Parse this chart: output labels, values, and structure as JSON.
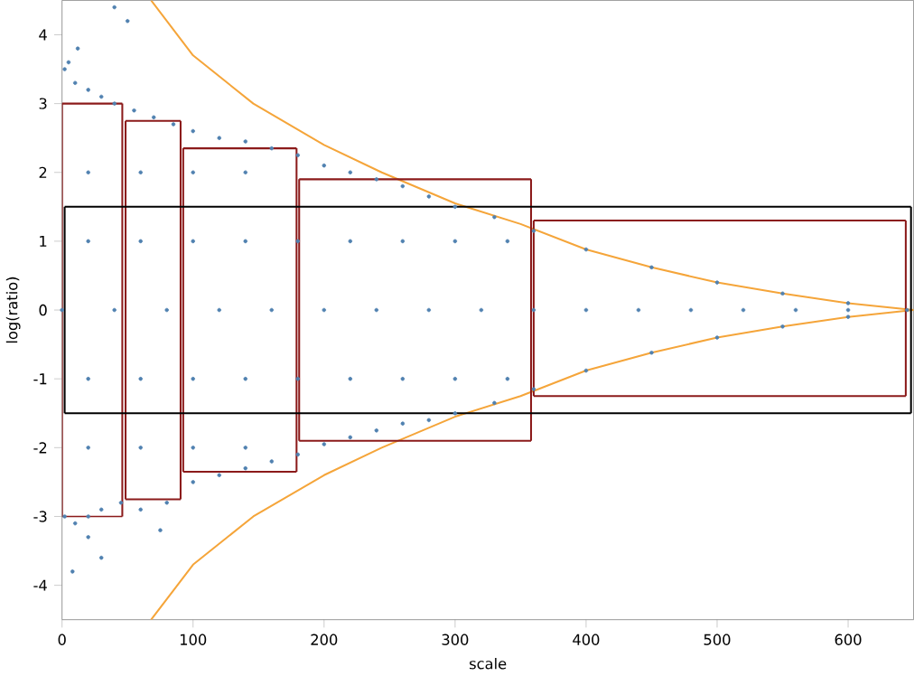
{
  "chart_data": {
    "type": "scatter",
    "xlabel": "scale",
    "ylabel": "log(ratio)",
    "xlim": [
      0,
      650
    ],
    "ylim": [
      -4.5,
      4.5
    ],
    "xticks": [
      0,
      100,
      200,
      300,
      400,
      500,
      600
    ],
    "yticks": [
      -4,
      -3,
      -2,
      -1,
      0,
      1,
      2,
      3,
      4
    ],
    "grid": false,
    "series": [
      {
        "marker": "circle",
        "color": "#5081b0",
        "x": [
          2,
          10,
          20,
          30,
          40,
          55,
          70,
          85,
          100,
          120,
          140,
          160,
          180,
          200,
          220,
          240,
          260,
          280,
          300,
          330,
          360,
          400,
          450,
          500,
          550,
          600,
          645,
          2,
          10,
          20,
          30,
          45,
          60,
          80,
          100,
          120,
          140,
          160,
          180,
          200,
          220,
          240,
          260,
          280,
          300,
          330,
          360,
          400,
          450,
          500,
          550,
          600,
          5,
          12,
          40,
          50,
          8,
          30,
          20,
          75,
          0,
          40,
          80,
          120,
          160,
          200,
          240,
          280,
          320,
          360,
          400,
          440,
          480,
          520,
          560,
          600,
          20,
          60,
          100,
          140,
          180,
          220,
          260,
          300,
          340,
          20,
          60,
          100,
          140,
          180,
          220,
          260,
          300,
          340,
          20,
          60,
          100,
          140,
          20,
          60,
          100,
          140
        ],
        "values": [
          3.5,
          3.3,
          3.2,
          3.1,
          3.0,
          2.9,
          2.8,
          2.7,
          2.6,
          2.5,
          2.45,
          2.35,
          2.25,
          2.1,
          2.0,
          1.9,
          1.8,
          1.65,
          1.5,
          1.35,
          1.15,
          0.88,
          0.62,
          0.4,
          0.24,
          0.1,
          0.0,
          -3.0,
          -3.1,
          -3.0,
          -2.9,
          -2.8,
          -2.9,
          -2.8,
          -2.5,
          -2.4,
          -2.3,
          -2.2,
          -2.1,
          -1.95,
          -1.85,
          -1.75,
          -1.65,
          -1.6,
          -1.5,
          -1.35,
          -1.15,
          -0.88,
          -0.62,
          -0.4,
          -0.24,
          -0.1,
          3.6,
          3.8,
          4.4,
          4.2,
          -3.8,
          -3.6,
          -3.3,
          -3.2,
          0,
          0,
          0,
          0,
          0,
          0,
          0,
          0,
          0,
          0,
          0,
          0,
          0,
          0,
          0,
          0,
          1,
          1,
          1,
          1,
          1,
          1,
          1,
          1,
          1,
          -1,
          -1,
          -1,
          -1,
          -1,
          -1,
          -1,
          -1,
          -1,
          2,
          2,
          2,
          2,
          -2,
          -2,
          -2,
          -2
        ]
      },
      {
        "type": "line",
        "color": "#f5a53a",
        "x": [
          68,
          100,
          146,
          200,
          244,
          300,
          350,
          400,
          450,
          500,
          550,
          600,
          650
        ],
        "values": [
          4.5,
          3.7,
          3.0,
          2.4,
          2.0,
          1.55,
          1.25,
          0.88,
          0.62,
          0.4,
          0.24,
          0.1,
          0
        ]
      },
      {
        "type": "line",
        "color": "#f5a53a",
        "x": [
          68,
          100,
          146,
          200,
          244,
          300,
          350,
          400,
          450,
          500,
          550,
          600,
          650
        ],
        "values": [
          -4.5,
          -3.7,
          -3.0,
          -2.4,
          -2.0,
          -1.55,
          -1.25,
          -0.88,
          -0.62,
          -0.4,
          -0.24,
          -0.1,
          0
        ]
      },
      {
        "type": "line",
        "color": "#8b1a1a",
        "x": [
          0,
          46
        ],
        "values": [
          3.0,
          3.0
        ]
      },
      {
        "type": "line",
        "color": "#8b1a1a",
        "x": [
          0,
          46
        ],
        "values": [
          -3.0,
          -3.0
        ]
      },
      {
        "type": "line",
        "color": "#8b1a1a",
        "x": [
          0,
          0
        ],
        "values": [
          -3.0,
          3.0
        ]
      },
      {
        "type": "line",
        "color": "#8b1a1a",
        "x": [
          46,
          46
        ],
        "values": [
          -3.0,
          3.0
        ]
      },
      {
        "type": "line",
        "color": "#8b1a1a",
        "x": [
          48.5,
          90.5
        ],
        "values": [
          2.75,
          2.75
        ]
      },
      {
        "type": "line",
        "color": "#8b1a1a",
        "x": [
          48.5,
          90.5
        ],
        "values": [
          -2.75,
          -2.75
        ]
      },
      {
        "type": "line",
        "color": "#8b1a1a",
        "x": [
          48.5,
          48.5
        ],
        "values": [
          -2.75,
          2.75
        ]
      },
      {
        "type": "line",
        "color": "#8b1a1a",
        "x": [
          90.5,
          90.5
        ],
        "values": [
          -2.75,
          2.75
        ]
      },
      {
        "type": "line",
        "color": "#8b1a1a",
        "x": [
          92.5,
          179
        ],
        "values": [
          2.35,
          2.35
        ]
      },
      {
        "type": "line",
        "color": "#8b1a1a",
        "x": [
          92.5,
          179
        ],
        "values": [
          -2.35,
          -2.35
        ]
      },
      {
        "type": "line",
        "color": "#8b1a1a",
        "x": [
          92.5,
          92.5
        ],
        "values": [
          -2.35,
          2.35
        ]
      },
      {
        "type": "line",
        "color": "#8b1a1a",
        "x": [
          179,
          179
        ],
        "values": [
          -2.35,
          2.35
        ]
      },
      {
        "type": "line",
        "color": "#8b1a1a",
        "x": [
          181,
          358
        ],
        "values": [
          1.9,
          1.9
        ]
      },
      {
        "type": "line",
        "color": "#8b1a1a",
        "x": [
          181,
          358
        ],
        "values": [
          -1.9,
          -1.9
        ]
      },
      {
        "type": "line",
        "color": "#8b1a1a",
        "x": [
          181,
          181
        ],
        "values": [
          -1.9,
          1.9
        ]
      },
      {
        "type": "line",
        "color": "#8b1a1a",
        "x": [
          358,
          358
        ],
        "values": [
          -1.9,
          1.9
        ]
      },
      {
        "type": "line",
        "color": "#8b1a1a",
        "x": [
          360,
          644
        ],
        "values": [
          1.3,
          1.3
        ]
      },
      {
        "type": "line",
        "color": "#8b1a1a",
        "x": [
          360,
          644
        ],
        "values": [
          -1.25,
          -1.25
        ]
      },
      {
        "type": "line",
        "color": "#8b1a1a",
        "x": [
          360,
          360
        ],
        "values": [
          -1.25,
          1.3
        ]
      },
      {
        "type": "line",
        "color": "#8b1a1a",
        "x": [
          644,
          644
        ],
        "values": [
          -1.25,
          1.3
        ]
      },
      {
        "type": "line",
        "color": "#000000",
        "x": [
          2,
          648
        ],
        "values": [
          1.5,
          1.5
        ]
      },
      {
        "type": "line",
        "color": "#000000",
        "x": [
          2,
          648
        ],
        "values": [
          -1.5,
          -1.5
        ]
      },
      {
        "type": "line",
        "color": "#000000",
        "x": [
          2,
          2
        ],
        "values": [
          -1.5,
          1.5
        ]
      },
      {
        "type": "line",
        "color": "#000000",
        "x": [
          648,
          648
        ],
        "values": [
          -1.5,
          1.5
        ]
      }
    ]
  }
}
